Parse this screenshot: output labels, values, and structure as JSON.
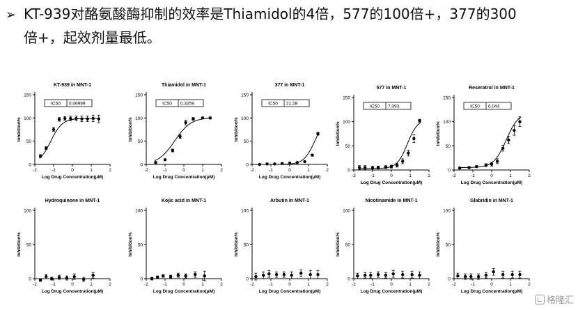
{
  "headline": {
    "bullet": "➢",
    "line1": "KT-939对酪氨酸酶抑制的效率是Thiamidol的4倍，577的100倍+，377的300",
    "line2": "倍+，起效剂量最低。"
  },
  "watermark": {
    "text": "格隆汇",
    "icon": "gelonghui-logo-icon"
  },
  "chart_data": [
    {
      "type": "scatter",
      "title": "KT-939 in MNT-1",
      "xlabel": "Log Drug Concentration(μM)",
      "ylabel": "Inhibition%",
      "xlim": [
        -2,
        2
      ],
      "ylim": [
        0,
        150
      ],
      "xticks": [
        -2,
        -1,
        0,
        1,
        2
      ],
      "yticks": [
        0,
        50,
        100,
        150
      ],
      "ic50_label": "IC50",
      "ic50_value": "0.06999",
      "x": [
        -1.7,
        -1.4,
        -1.0,
        -0.7,
        -0.4,
        -0.1,
        0.2,
        0.5,
        0.8,
        1.1,
        1.4
      ],
      "y": [
        18,
        35,
        75,
        97,
        99,
        99,
        99,
        98,
        98,
        99,
        98
      ],
      "err": [
        3,
        3,
        4,
        4,
        4,
        5,
        5,
        6,
        6,
        7,
        8
      ],
      "fit": {
        "bottom": 0,
        "top": 99,
        "logIC50": -1.16,
        "hill": 1.4
      }
    },
    {
      "type": "scatter",
      "title": "Thiamidol in MNT-1",
      "xlabel": "Log Drug Concentration(μM)",
      "ylabel": "Inhibition%",
      "xlim": [
        -2,
        2
      ],
      "ylim": [
        0,
        150
      ],
      "xticks": [
        -2,
        -1,
        0,
        1,
        2
      ],
      "yticks": [
        0,
        50,
        100,
        150
      ],
      "ic50_label": "IC50",
      "ic50_value": "0.3259",
      "x": [
        -1.5,
        -1.0,
        -0.6,
        -0.2,
        0.1,
        0.5,
        1.0,
        1.4
      ],
      "y": [
        4,
        10,
        30,
        60,
        90,
        98,
        100,
        100
      ],
      "err": [
        2,
        2,
        3,
        4,
        5,
        3,
        2,
        2
      ],
      "fit": {
        "bottom": 0,
        "top": 101,
        "logIC50": -0.49,
        "hill": 1.0
      }
    },
    {
      "type": "scatter",
      "title": "377 in MNT-1",
      "xlabel": "Log Drug Concentration(μM)",
      "ylabel": "Inhibition%",
      "xlim": [
        -2,
        2
      ],
      "ylim": [
        0,
        150
      ],
      "xticks": [
        -2,
        -1,
        0,
        1,
        2
      ],
      "yticks": [
        0,
        50,
        100,
        150
      ],
      "ic50_label": "IC50",
      "ic50_value": "21.28",
      "x": [
        -1.6,
        -1.2,
        -0.8,
        -0.4,
        0.0,
        0.4,
        0.8,
        1.2,
        1.5
      ],
      "y": [
        0,
        1,
        1,
        2,
        3,
        4,
        6,
        20,
        66
      ],
      "err": [
        1,
        1,
        1,
        1,
        1,
        1,
        1,
        2,
        3
      ],
      "fit": {
        "bottom": 0,
        "top": 100,
        "logIC50": 1.33,
        "hill": 1.5
      }
    },
    {
      "type": "scatter",
      "title": "577 in MNT-1",
      "xlabel": "Log Drug Concentration(μM)",
      "ylabel": "Inhibition%",
      "xlim": [
        -2,
        2
      ],
      "ylim": [
        0,
        150
      ],
      "xticks": [
        -2,
        -1,
        0,
        1,
        2
      ],
      "yticks": [
        0,
        50,
        100,
        150
      ],
      "ic50_label": "IC50",
      "ic50_value": "7.093",
      "x": [
        -1.7,
        -1.4,
        -1.0,
        -0.7,
        -0.3,
        0.0,
        0.3,
        0.6,
        0.9,
        1.2,
        1.5
      ],
      "y": [
        5,
        5,
        4,
        5,
        6,
        7,
        10,
        18,
        35,
        65,
        102
      ],
      "err": [
        4,
        4,
        4,
        3,
        3,
        3,
        4,
        5,
        6,
        8,
        3
      ],
      "fit": {
        "bottom": 3,
        "top": 105,
        "logIC50": 0.85,
        "hill": 1.6
      }
    },
    {
      "type": "scatter",
      "title": "Reseratrol in MNT-1",
      "xlabel": "Log Drug Concentration(μM)",
      "ylabel": "Inhibition%",
      "xlim": [
        -2,
        2
      ],
      "ylim": [
        0,
        150
      ],
      "xticks": [
        -2,
        -1,
        0,
        1,
        2
      ],
      "yticks": [
        0,
        50,
        100,
        150
      ],
      "ic50_label": "IC50",
      "ic50_value": "6.044",
      "x": [
        -1.7,
        -1.2,
        -0.8,
        -0.3,
        0.0,
        0.3,
        0.6,
        0.9,
        1.2,
        1.5
      ],
      "y": [
        4,
        5,
        7,
        10,
        12,
        18,
        45,
        62,
        82,
        100
      ],
      "err": [
        2,
        2,
        2,
        3,
        4,
        5,
        6,
        8,
        10,
        10
      ],
      "fit": {
        "bottom": 5,
        "top": 120,
        "logIC50": 0.78,
        "hill": 1.3
      }
    },
    {
      "type": "scatter",
      "title": "Hydroquinone in MNT-1",
      "xlabel": "Log Drug Concentration(μM)",
      "ylabel": "Inhibition%",
      "xlim": [
        -2,
        2
      ],
      "ylim": [
        0,
        100
      ],
      "xticks": [
        -2,
        -1,
        0,
        1,
        2
      ],
      "yticks": [
        0,
        50,
        100
      ],
      "x": [
        -1.7,
        -1.4,
        -1.1,
        -0.7,
        -0.3,
        0.1,
        0.6,
        1.1
      ],
      "y": [
        -2,
        3,
        0,
        2,
        1,
        3,
        -1,
        5
      ],
      "err": [
        2,
        3,
        2,
        3,
        3,
        4,
        3,
        4
      ],
      "fit": {
        "bottom": 0,
        "top": 0,
        "logIC50": 0,
        "hill": 1
      }
    },
    {
      "type": "scatter",
      "title": "Kojic acid in MNT-1",
      "xlabel": "Log Drug Concentration(μM)",
      "ylabel": "Inhibition%",
      "xlim": [
        -2,
        2
      ],
      "ylim": [
        0,
        100
      ],
      "xticks": [
        -2,
        -1,
        0,
        1,
        2
      ],
      "yticks": [
        0,
        50,
        100
      ],
      "x": [
        -1.7,
        -1.4,
        -1.1,
        -0.7,
        -0.3,
        0.1,
        0.6,
        1.1
      ],
      "y": [
        0,
        2,
        4,
        3,
        5,
        4,
        6,
        4
      ],
      "err": [
        2,
        2,
        2,
        2,
        3,
        3,
        4,
        7
      ],
      "fit": {
        "bottom": 0,
        "top": 0,
        "logIC50": 0,
        "hill": 1
      }
    },
    {
      "type": "scatter",
      "title": "Arbutin in MNT-1",
      "xlabel": "Log Drug Concentration(μM)",
      "ylabel": "Inhibition%",
      "xlim": [
        -2,
        2
      ],
      "ylim": [
        0,
        100
      ],
      "xticks": [
        -2,
        -1,
        0,
        1,
        2
      ],
      "yticks": [
        0,
        50,
        100
      ],
      "x": [
        -1.8,
        -1.4,
        -1.1,
        -0.7,
        -0.3,
        0.1,
        0.6,
        1.1,
        1.5
      ],
      "y": [
        3,
        5,
        7,
        6,
        6,
        5,
        8,
        6,
        6
      ],
      "err": [
        5,
        5,
        5,
        4,
        4,
        5,
        5,
        6,
        6
      ],
      "fit": {
        "bottom": 0,
        "top": 0,
        "logIC50": 0,
        "hill": 1
      }
    },
    {
      "type": "scatter",
      "title": "Nicotinamide in MNT-1",
      "xlabel": "Log Drug Concentration(μM)",
      "ylabel": "Inhibition%",
      "xlim": [
        -2,
        2
      ],
      "ylim": [
        0,
        100
      ],
      "xticks": [
        -2,
        -1,
        0,
        1,
        2
      ],
      "yticks": [
        0,
        50,
        100
      ],
      "x": [
        -1.8,
        -1.4,
        -1.1,
        -0.7,
        -0.3,
        0.1,
        0.6,
        1.1,
        1.5
      ],
      "y": [
        4,
        5,
        5,
        6,
        5,
        7,
        6,
        6,
        5
      ],
      "err": [
        4,
        4,
        4,
        4,
        4,
        5,
        5,
        5,
        5
      ],
      "fit": {
        "bottom": 0,
        "top": 0,
        "logIC50": 0,
        "hill": 1
      }
    },
    {
      "type": "scatter",
      "title": "Glabridin in MNT-1",
      "xlabel": "Log Drug Concentration(μM)",
      "ylabel": "Inhibition%",
      "xlim": [
        -2,
        2
      ],
      "ylim": [
        0,
        100
      ],
      "xticks": [
        -2,
        -1,
        0,
        1,
        2
      ],
      "yticks": [
        0,
        50,
        100
      ],
      "x": [
        -1.8,
        -1.4,
        -1.1,
        -0.7,
        -0.3,
        0.1,
        0.6,
        1.1,
        1.5
      ],
      "y": [
        4,
        3,
        3,
        3,
        5,
        10,
        6,
        6,
        6
      ],
      "err": [
        4,
        4,
        4,
        4,
        4,
        5,
        5,
        5,
        5
      ],
      "fit": {
        "bottom": 0,
        "top": 0,
        "logIC50": 0,
        "hill": 1
      }
    }
  ]
}
